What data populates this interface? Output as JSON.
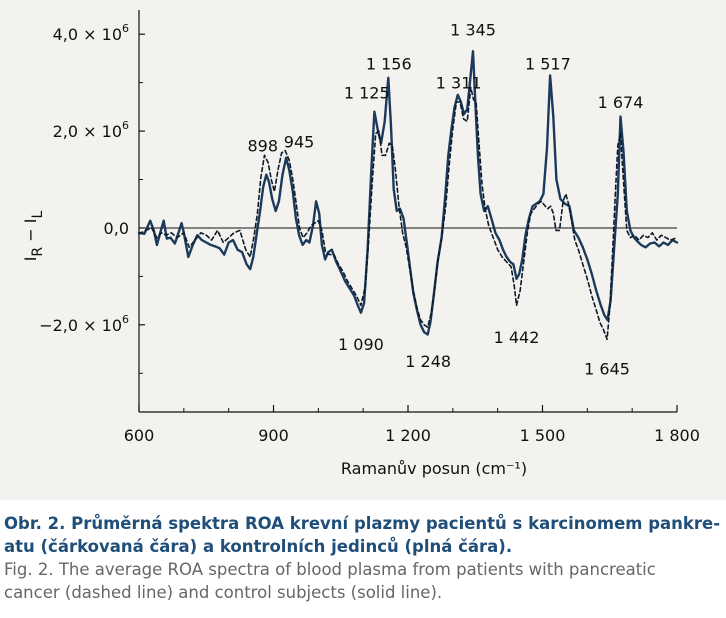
{
  "chart_data": {
    "type": "line",
    "title": "",
    "xlabel": "Ramanův posun (cm⁻¹)",
    "ylabel_main": "I",
    "ylabel_sub1": "R",
    "ylabel_minus": " − I",
    "ylabel_sub2": "L",
    "xlim": [
      600,
      1800
    ],
    "ylim": [
      -3.8,
      4.5
    ],
    "x_ticks": [
      600,
      900,
      1200,
      1500,
      1800
    ],
    "x_tick_labels": [
      "600",
      "900",
      "1 200",
      "1 500",
      "1 800"
    ],
    "y_ticks": [
      {
        "value": 4.0,
        "mantissa": "4,0 × 10",
        "exp": "6"
      },
      {
        "value": 2.0,
        "mantissa": "2,0 × 10",
        "exp": "6"
      },
      {
        "value": 0.0,
        "mantissa": "0,0",
        "exp": ""
      },
      {
        "value": -2.0,
        "mantissa": "−2,0 × 10",
        "exp": "6"
      }
    ],
    "peak_labels": [
      {
        "text": "898",
        "x": 876,
        "y": 1.7
      },
      {
        "text": "945",
        "x": 957,
        "y": 1.78
      },
      {
        "text": "1 125",
        "x": 1108,
        "y": 2.8
      },
      {
        "text": "1 156",
        "x": 1157,
        "y": 3.4
      },
      {
        "text": "1 311",
        "x": 1313,
        "y": 3.0
      },
      {
        "text": "1 345",
        "x": 1345,
        "y": 4.1
      },
      {
        "text": "1 517",
        "x": 1512,
        "y": 3.4
      },
      {
        "text": "1 674",
        "x": 1674,
        "y": 2.6
      },
      {
        "text": "1 090",
        "x": 1095,
        "y": -2.4
      },
      {
        "text": "1 248",
        "x": 1245,
        "y": -2.75
      },
      {
        "text": "1 442",
        "x": 1442,
        "y": -2.25
      },
      {
        "text": "1 645",
        "x": 1644,
        "y": -2.9
      }
    ],
    "series": [
      {
        "style": "solid",
        "x": [
          600,
          612,
          625,
          633,
          640,
          648,
          655,
          662,
          670,
          680,
          688,
          695,
          700,
          710,
          720,
          730,
          740,
          750,
          760,
          770,
          780,
          790,
          800,
          810,
          820,
          830,
          840,
          848,
          855,
          862,
          870,
          877,
          884,
          890,
          897,
          905,
          912,
          920,
          928,
          935,
          943,
          950,
          957,
          965,
          973,
          980,
          988,
          995,
          1002,
          1008,
          1015,
          1022,
          1030,
          1040,
          1050,
          1060,
          1070,
          1080,
          1088,
          1095,
          1102,
          1110,
          1118,
          1125,
          1133,
          1140,
          1148,
          1156,
          1162,
          1168,
          1175,
          1182,
          1190,
          1198,
          1205,
          1212,
          1220,
          1228,
          1236,
          1244,
          1250,
          1258,
          1266,
          1275,
          1283,
          1290,
          1297,
          1304,
          1311,
          1318,
          1325,
          1332,
          1338,
          1345,
          1350,
          1356,
          1362,
          1370,
          1378,
          1386,
          1395,
          1404,
          1412,
          1420,
          1428,
          1435,
          1442,
          1448,
          1455,
          1462,
          1470,
          1478,
          1486,
          1494,
          1502,
          1510,
          1517,
          1524,
          1531,
          1540,
          1550,
          1560,
          1570,
          1580,
          1590,
          1600,
          1610,
          1620,
          1630,
          1638,
          1645,
          1652,
          1660,
          1668,
          1674,
          1681,
          1688,
          1696,
          1704,
          1712,
          1720,
          1730,
          1740,
          1750,
          1760,
          1770,
          1780,
          1790,
          1800
        ],
        "y": [
          -0.1,
          -0.12,
          0.15,
          -0.05,
          -0.35,
          -0.08,
          0.15,
          -0.22,
          -0.2,
          -0.32,
          -0.1,
          0.1,
          -0.1,
          -0.6,
          -0.35,
          -0.15,
          -0.25,
          -0.3,
          -0.35,
          -0.38,
          -0.42,
          -0.55,
          -0.3,
          -0.25,
          -0.45,
          -0.5,
          -0.75,
          -0.85,
          -0.6,
          -0.15,
          0.35,
          0.85,
          1.1,
          0.95,
          0.6,
          0.35,
          0.55,
          1.1,
          1.45,
          1.2,
          0.75,
          0.2,
          -0.15,
          -0.35,
          -0.25,
          -0.3,
          0.05,
          0.55,
          0.3,
          -0.35,
          -0.65,
          -0.5,
          -0.45,
          -0.7,
          -0.9,
          -1.1,
          -1.25,
          -1.4,
          -1.6,
          -1.75,
          -1.55,
          -0.45,
          1.15,
          2.4,
          2.0,
          1.75,
          2.2,
          3.1,
          2.1,
          0.8,
          0.35,
          0.4,
          0.2,
          -0.35,
          -0.85,
          -1.35,
          -1.7,
          -2.0,
          -2.15,
          -2.2,
          -1.95,
          -1.35,
          -0.7,
          -0.2,
          0.65,
          1.5,
          2.05,
          2.5,
          2.75,
          2.6,
          2.35,
          2.45,
          3.0,
          3.65,
          2.6,
          1.5,
          0.7,
          0.35,
          0.45,
          0.2,
          -0.1,
          -0.25,
          -0.45,
          -0.6,
          -0.7,
          -0.75,
          -1.05,
          -0.95,
          -0.65,
          -0.15,
          0.2,
          0.45,
          0.5,
          0.55,
          0.7,
          1.65,
          3.15,
          2.3,
          1.0,
          0.6,
          0.5,
          0.45,
          -0.05,
          -0.2,
          -0.4,
          -0.65,
          -0.95,
          -1.3,
          -1.6,
          -1.8,
          -1.9,
          -1.5,
          -0.4,
          0.7,
          2.3,
          1.55,
          0.35,
          -0.05,
          -0.2,
          -0.28,
          -0.35,
          -0.4,
          -0.32,
          -0.3,
          -0.38,
          -0.3,
          -0.35,
          -0.25,
          -0.3
        ]
      },
      {
        "style": "dashed",
        "x": [
          600,
          615,
          628,
          640,
          650,
          660,
          672,
          685,
          700,
          712,
          725,
          738,
          750,
          762,
          775,
          788,
          800,
          812,
          825,
          838,
          848,
          856,
          864,
          872,
          880,
          888,
          895,
          902,
          910,
          918,
          926,
          935,
          943,
          950,
          958,
          966,
          975,
          984,
          992,
          1000,
          1008,
          1016,
          1025,
          1035,
          1045,
          1055,
          1065,
          1075,
          1085,
          1095,
          1105,
          1112,
          1120,
          1128,
          1135,
          1142,
          1150,
          1158,
          1165,
          1172,
          1180,
          1188,
          1196,
          1204,
          1212,
          1220,
          1228,
          1236,
          1244,
          1252,
          1260,
          1268,
          1276,
          1284,
          1292,
          1300,
          1308,
          1316,
          1324,
          1332,
          1340,
          1346,
          1352,
          1358,
          1365,
          1372,
          1380,
          1390,
          1400,
          1410,
          1420,
          1430,
          1437,
          1442,
          1450,
          1458,
          1466,
          1474,
          1482,
          1490,
          1498,
          1506,
          1512,
          1518,
          1524,
          1530,
          1538,
          1546,
          1552,
          1558,
          1565,
          1572,
          1580,
          1590,
          1600,
          1610,
          1620,
          1628,
          1636,
          1644,
          1650,
          1656,
          1662,
          1668,
          1674,
          1680,
          1688,
          1696,
          1705,
          1715,
          1725,
          1735,
          1745,
          1755,
          1765,
          1775,
          1785,
          1800
        ],
        "y": [
          -0.12,
          -0.05,
          0.0,
          -0.2,
          -0.1,
          -0.15,
          -0.1,
          -0.2,
          -0.1,
          -0.4,
          -0.25,
          -0.1,
          -0.15,
          -0.25,
          -0.05,
          -0.3,
          -0.2,
          -0.1,
          -0.05,
          -0.45,
          -0.6,
          -0.2,
          0.3,
          1.05,
          1.5,
          1.35,
          1.0,
          0.75,
          1.2,
          1.55,
          1.6,
          1.4,
          1.0,
          0.55,
          0.0,
          -0.2,
          -0.1,
          0.05,
          0.1,
          0.15,
          -0.05,
          -0.5,
          -0.55,
          -0.55,
          -0.75,
          -0.9,
          -1.1,
          -1.25,
          -1.4,
          -1.6,
          -1.2,
          -0.3,
          0.9,
          1.95,
          2.0,
          1.5,
          1.5,
          1.75,
          1.7,
          1.2,
          0.45,
          -0.1,
          -0.4,
          -0.85,
          -1.3,
          -1.65,
          -1.9,
          -2.0,
          -2.05,
          -1.75,
          -1.2,
          -0.6,
          -0.15,
          0.45,
          1.3,
          2.05,
          2.6,
          2.6,
          2.25,
          2.2,
          2.9,
          2.65,
          2.6,
          1.8,
          0.9,
          0.4,
          0.05,
          -0.2,
          -0.45,
          -0.6,
          -0.7,
          -0.8,
          -1.2,
          -1.6,
          -1.3,
          -0.7,
          -0.1,
          0.3,
          0.4,
          0.5,
          0.55,
          0.45,
          0.4,
          0.45,
          0.3,
          -0.05,
          -0.05,
          0.55,
          0.7,
          0.5,
          0.15,
          -0.25,
          -0.45,
          -0.75,
          -1.05,
          -1.4,
          -1.7,
          -1.95,
          -2.1,
          -2.3,
          -1.65,
          -0.6,
          0.6,
          1.7,
          1.95,
          1.05,
          -0.05,
          -0.2,
          -0.15,
          -0.25,
          -0.15,
          -0.2,
          -0.1,
          -0.25,
          -0.15,
          -0.2,
          -0.25,
          -0.2
        ]
      }
    ]
  },
  "caption": {
    "czech_line1": "Obr. 2. Průměrná spektra ROA krevní plazmy pacientů s karcinomem pankre-",
    "czech_line2": "atu (čárkovaná čára) a kontrolních jedinců (plná čára).",
    "english_line1": "Fig. 2. The average ROA spectra of blood plasma from patients with pancreatic",
    "english_line2": "cancer (dashed line) and control subjects (solid line)."
  },
  "colors": {
    "solid_line": "#1b3a5c",
    "dashed_line": "#0d1a2a",
    "axis": "#111111",
    "panel_bg": "#f4f2ee",
    "caption_czech": "#1f4e78",
    "caption_english": "#666666"
  }
}
